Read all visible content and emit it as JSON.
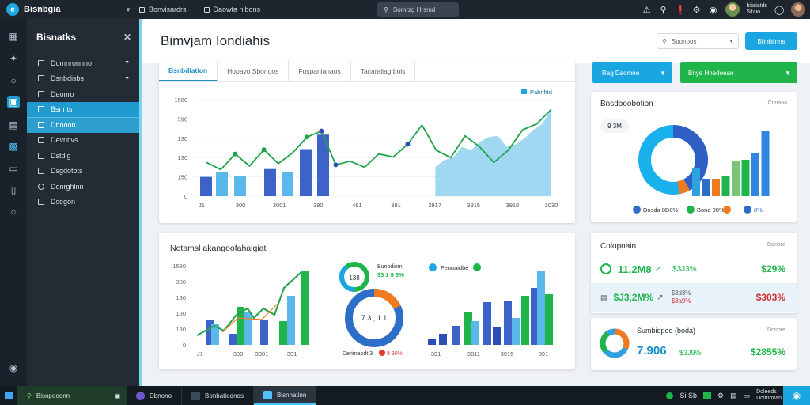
{
  "topbar": {
    "brand": "Bisnbgia",
    "tabs": [
      "Bonvisardrs",
      "Daowta nibons"
    ],
    "search_placeholder": "Somrzg Hrsmd",
    "user_line1": "hibriatds",
    "user_line2": "Sitaio"
  },
  "sidebar": {
    "title": "Bisnatks",
    "items": [
      {
        "label": "Domnronnno",
        "caret": true
      },
      {
        "label": "Dsnbdisbs",
        "caret": true
      },
      {
        "label": "Deonro"
      },
      {
        "label": "Bsnrits",
        "active": true
      },
      {
        "label": "Dbnoon",
        "active": true
      },
      {
        "label": "Devntivs"
      },
      {
        "label": "Dstdig"
      },
      {
        "label": "Dsgdotots"
      },
      {
        "label": "Donrghlnn"
      },
      {
        "label": "Dsegon"
      }
    ]
  },
  "header": {
    "title": "Bimvjam Iondiahis",
    "select_placeholder": "Soonoos",
    "action_button": "Bhnbiinns"
  },
  "top_chart": {
    "tabs": [
      "Bsnbdiation",
      "Hopavo Sbonoos",
      "Fuspanianaos",
      "Tacaraliag bois"
    ],
    "legend": "Pabnhtd",
    "ticks": [
      "1580",
      "590",
      "130",
      "130",
      "150",
      "0"
    ],
    "xlabels": [
      "J1",
      "300",
      "3001",
      "390",
      "491",
      "391",
      "3917",
      "3915",
      "3918",
      "3030"
    ]
  },
  "chart_data": [
    {
      "type": "bar",
      "ylim": [
        0,
        1600
      ],
      "categories": [
        "J1",
        "300",
        "3001",
        "390",
        "491",
        "391",
        "3917",
        "3915",
        "3918",
        "3030"
      ],
      "series": [
        {
          "name": "Pabnhtd",
          "values": [
            320,
            400,
            330,
            450,
            400,
            780,
            1020,
            0,
            0,
            0
          ]
        },
        {
          "values": [
            0,
            0,
            0,
            0,
            0,
            0,
            0,
            0,
            0,
            0
          ]
        }
      ],
      "line": [
        560,
        440,
        700,
        500,
        770,
        540,
        720,
        980,
        1080,
        520,
        580,
        480,
        700,
        650,
        860,
        1180,
        760,
        640,
        1000,
        820,
        560,
        760,
        1100,
        1200,
        1440
      ],
      "area": [
        0,
        0,
        0,
        0,
        0,
        0,
        0,
        0,
        0,
        0,
        0,
        0,
        480,
        600,
        640,
        820,
        760,
        900,
        980,
        1000,
        820,
        860,
        960,
        1100,
        1200,
        1450
      ]
    }
  ],
  "donut_card": {
    "title": "Bnsdooobotion",
    "link": "Cnnaaa",
    "badge": "9 3M",
    "bars": [
      0.36,
      0.22,
      0.22,
      0.26,
      0.45,
      0.46,
      0.54,
      0.82
    ],
    "bar_colors": [
      "#2fa0e0",
      "#2d6ec8",
      "#f07a1f",
      "#1fb54a",
      "#7cc576",
      "#1fb54a",
      "#2e86de",
      "#2e86de"
    ],
    "legend": [
      {
        "text": "Dosda 8D8%",
        "color": "#2d6ec8"
      },
      {
        "text": "Bond 90%",
        "color": "#1fb54a"
      },
      {
        "text": "",
        "color": "#f07a1f"
      },
      {
        "text": "8%",
        "color": "#2d6ec8"
      }
    ]
  },
  "buttons": {
    "blue": "Rag Daomne",
    "green": "Bnye Hnedoean"
  },
  "bottom_chart": {
    "title": "Notamsl akangoofahalgiat",
    "ticks": [
      "1580",
      "300",
      "130",
      "130",
      "130",
      "0"
    ],
    "xlabels": [
      "J1",
      "300",
      "3001",
      "391"
    ],
    "donut_label1": "Bunbdiom",
    "donut_value1": "$3 1 9 3%",
    "donut_center_top": "138",
    "donut_center": "7 3 , 1 1",
    "donut_footer": "Derimaodt 3",
    "donut_footer2": "8 30%",
    "legend": "Fenuaidbe",
    "xlabels2": [
      "391",
      "3011",
      "3915",
      "391"
    ]
  },
  "stats_card": {
    "title": "Colopnain",
    "link": "Donore",
    "row1": {
      "value": "11,2M8",
      "mid": "$3J3%",
      "right": "$29%"
    },
    "row2": {
      "value": "$J3,2M%",
      "mid1": "$3d3%",
      "mid2": "$3a9%",
      "right": "$303%"
    }
  },
  "summary_card": {
    "title": "Sumbidpoe (boda)",
    "link": "Donore",
    "value": "7.906",
    "mid": "$3J9%",
    "right": "$2855%"
  },
  "taskbar": {
    "search": "Bisnpoeonn",
    "apps": [
      "Dbnono",
      "Bonbatiodnos",
      "Bisnnatinn"
    ],
    "tray_text": "Si Sb",
    "clock1": "Doleeds",
    "clock2": "Dolmmtan"
  }
}
